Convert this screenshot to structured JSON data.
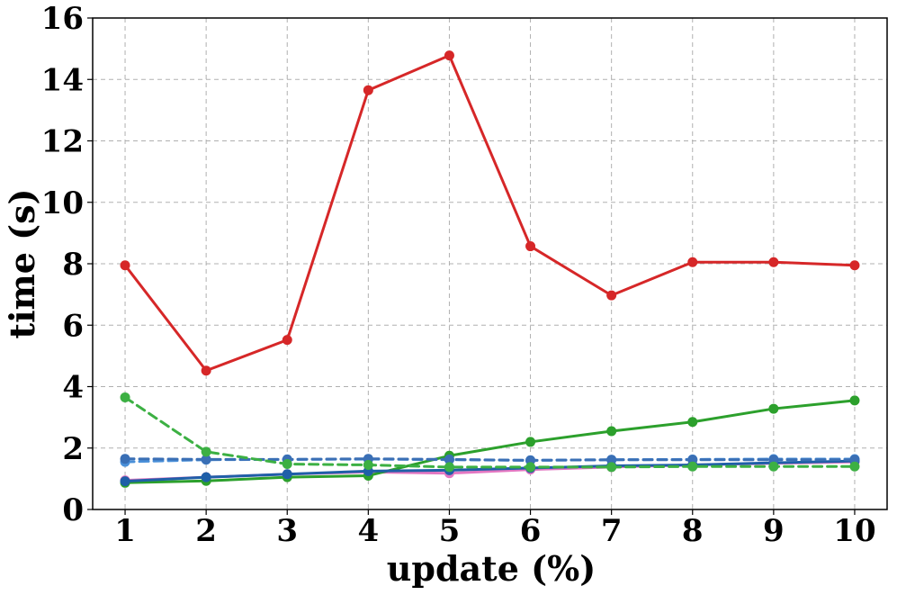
{
  "chart_data": {
    "type": "line",
    "title": "",
    "xlabel": "update (%)",
    "ylabel": "time (s)",
    "x": [
      1,
      2,
      3,
      4,
      5,
      6,
      7,
      8,
      9,
      10
    ],
    "xticks": [
      "1",
      "2",
      "3",
      "4",
      "5",
      "6",
      "7",
      "8",
      "9",
      "10"
    ],
    "yticks": [
      "0",
      "2",
      "4",
      "6",
      "8",
      "10",
      "12",
      "14",
      "16"
    ],
    "xlim": [
      0.6,
      10.4
    ],
    "ylim": [
      0,
      16
    ],
    "grid": true,
    "legend": "none",
    "series": [
      {
        "color": "#e377c2",
        "dash": "solid",
        "values": [
          0.95,
          1.05,
          1.15,
          1.22,
          1.18,
          1.3,
          1.38,
          1.45,
          1.5,
          1.55
        ]
      },
      {
        "color": "#4a90d9",
        "dash": "dashed",
        "values": [
          1.55,
          1.62,
          1.63,
          1.64,
          1.62,
          1.6,
          1.62,
          1.63,
          1.64,
          1.64
        ]
      },
      {
        "color": "#d62728",
        "dash": "solid",
        "values": [
          7.95,
          4.52,
          5.52,
          13.65,
          14.78,
          8.57,
          6.97,
          8.05,
          8.05,
          7.95
        ]
      },
      {
        "color": "#2ca02c",
        "dash": "solid",
        "values": [
          0.87,
          0.93,
          1.05,
          1.1,
          1.75,
          2.2,
          2.55,
          2.85,
          3.28,
          3.55
        ]
      },
      {
        "color": "#1f5fa8",
        "dash": "solid",
        "values": [
          0.92,
          1.05,
          1.15,
          1.25,
          1.28,
          1.35,
          1.42,
          1.45,
          1.52,
          1.58
        ]
      },
      {
        "color": "#3a6fb5",
        "dash": "dashed",
        "values": [
          1.65,
          1.63,
          1.63,
          1.65,
          1.63,
          1.6,
          1.62,
          1.62,
          1.62,
          1.62
        ]
      },
      {
        "color": "#3cb043",
        "dash": "dashed",
        "values": [
          3.65,
          1.88,
          1.48,
          1.45,
          1.38,
          1.38,
          1.38,
          1.4,
          1.4,
          1.4
        ]
      }
    ]
  }
}
